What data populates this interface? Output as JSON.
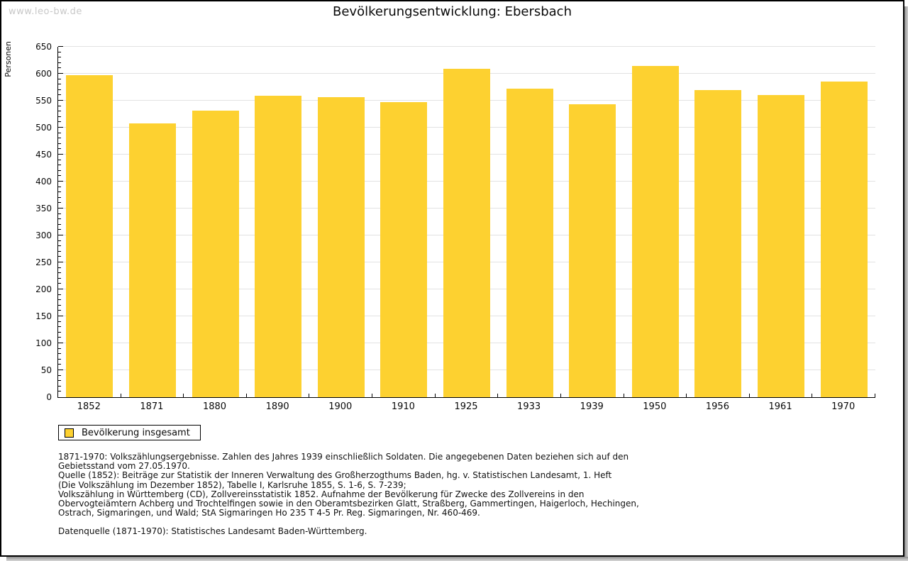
{
  "watermark": "www.leo-bw.de",
  "title": "Bevölkerungsentwicklung: Ebersbach",
  "chart_data": {
    "type": "bar",
    "title": "Bevölkerungsentwicklung: Ebersbach",
    "xlabel": "",
    "ylabel": "Personen",
    "categories": [
      "1852",
      "1871",
      "1880",
      "1890",
      "1900",
      "1910",
      "1925",
      "1933",
      "1939",
      "1950",
      "1956",
      "1961",
      "1970"
    ],
    "series": [
      {
        "name": "Bevölkerung insgesamt",
        "values": [
          598,
          508,
          531,
          559,
          557,
          547,
          609,
          572,
          543,
          615,
          570,
          561,
          585
        ]
      }
    ],
    "ylim": [
      0,
      650
    ],
    "ytick_step": 50,
    "ytick_minor_step": 10,
    "grid": "horizontal",
    "bar_color": "#fdd130",
    "legend_position": "bottom-left"
  },
  "footnotes": {
    "lines": [
      "1871-1970: Volkszählungsergebnisse. Zahlen des Jahres 1939 einschließlich Soldaten. Die angegebenen Daten beziehen sich auf den",
      "Gebietsstand vom 27.05.1970.",
      "Quelle (1852): Beiträge zur Statistik der Inneren Verwaltung des Großherzogthums Baden, hg. v. Statistischen Landesamt, 1. Heft",
      "(Die Volkszählung im Dezember 1852), Tabelle I, Karlsruhe 1855, S. 1-6, S. 7-239;",
      "Volkszählung in Württemberg (CD), Zollvereinsstatistik 1852. Aufnahme der Bevölkerung für Zwecke des Zollvereins in den",
      "Obervogteiämtern Achberg und Trochtelfingen sowie in den Oberamtsbezirken Glatt, Straßberg, Gammertingen, Haigerloch, Hechingen,",
      "Ostrach, Sigmaringen, und Wald; StA Sigmaringen Ho 235 T 4-5 Pr. Reg. Sigmaringen, Nr. 460-469."
    ],
    "source": "Datenquelle (1871-1970): Statistisches Landesamt Baden-Württemberg."
  }
}
